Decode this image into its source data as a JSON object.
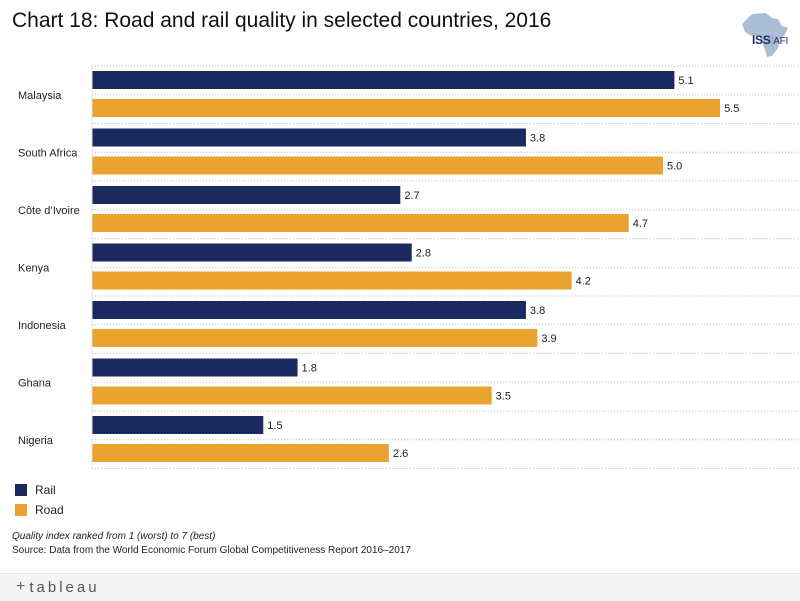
{
  "title": "Chart 18: Road and rail quality in selected countries, 2016",
  "logo": {
    "name": "ISS",
    "separator": "|",
    "suffix": "AFI",
    "icon": "africa-map-icon"
  },
  "chart_data": {
    "type": "bar",
    "orientation": "horizontal",
    "categories": [
      "Malaysia",
      "South Africa",
      "Côte d’Ivoire",
      "Kenya",
      "Indonesia",
      "Ghana",
      "Nigeria"
    ],
    "series": [
      {
        "name": "Rail",
        "color": "#1b2a5e",
        "values": [
          5.1,
          3.8,
          2.7,
          2.8,
          3.8,
          1.8,
          1.5
        ],
        "labels": [
          "5.1",
          "3.8",
          "2.7",
          "2.8",
          "3.8",
          "1.8",
          "1.5"
        ]
      },
      {
        "name": "Road",
        "color": "#eaa32e",
        "values": [
          5.5,
          5.0,
          4.7,
          4.2,
          3.9,
          3.5,
          2.6
        ],
        "labels": [
          "5.5",
          "5.0",
          "4.7",
          "4.2",
          "3.9",
          "3.5",
          "2.6"
        ]
      }
    ],
    "xlim": [
      0,
      6.2
    ],
    "grid": "dotted row separators",
    "legend": "bottom-left"
  },
  "footnote": {
    "note": "Quality index ranked from 1 (worst) to 7 (best)",
    "source": "Source: Data from the World Economic Forum Global Competitiveness Report 2016–2017"
  },
  "footer": {
    "brand": "tableau",
    "mark": "+"
  }
}
